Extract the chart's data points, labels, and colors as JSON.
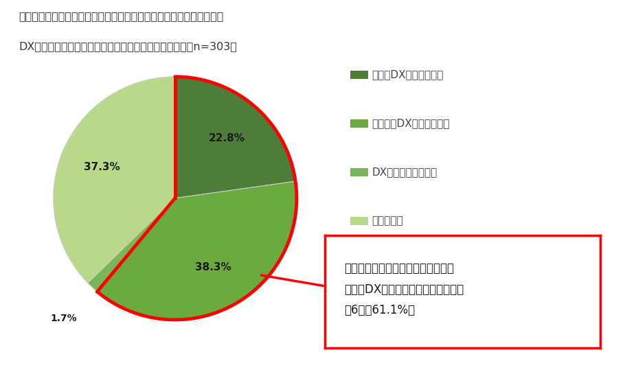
{
  "title_line1": "介護業界の二大課題である「人材不足」解消や「人材定着」のための",
  "title_line2": "DX活用について、あてはまるものをお選びください。（n=303）",
  "slices": [
    22.8,
    38.3,
    1.7,
    37.3
  ],
  "labels": [
    "22.8%",
    "38.3%",
    "1.7%",
    "37.3%"
  ],
  "colors": [
    "#4e7d3a",
    "#6aaa3e",
    "#7ab558",
    "#b8d98a"
  ],
  "legend_labels": [
    "早急にDX活用をしたい",
    "いずれはDX活用をしたい",
    "DX活用はしたくない",
    "わからない"
  ],
  "legend_colors": [
    "#4e7d3a",
    "#6aaa3e",
    "#7ab558",
    "#b8d98a"
  ],
  "annotation_text": "「人材不足」解消や「人材定着」の\nためにDXを活用したいと答えた人は\n約6割（61.1%）",
  "background_color": "#ffffff",
  "red_color": "#ff0000",
  "label_colors": [
    "#1a1a1a",
    "#1a1a1a",
    "#1a1a1a",
    "#1a1a1a"
  ]
}
